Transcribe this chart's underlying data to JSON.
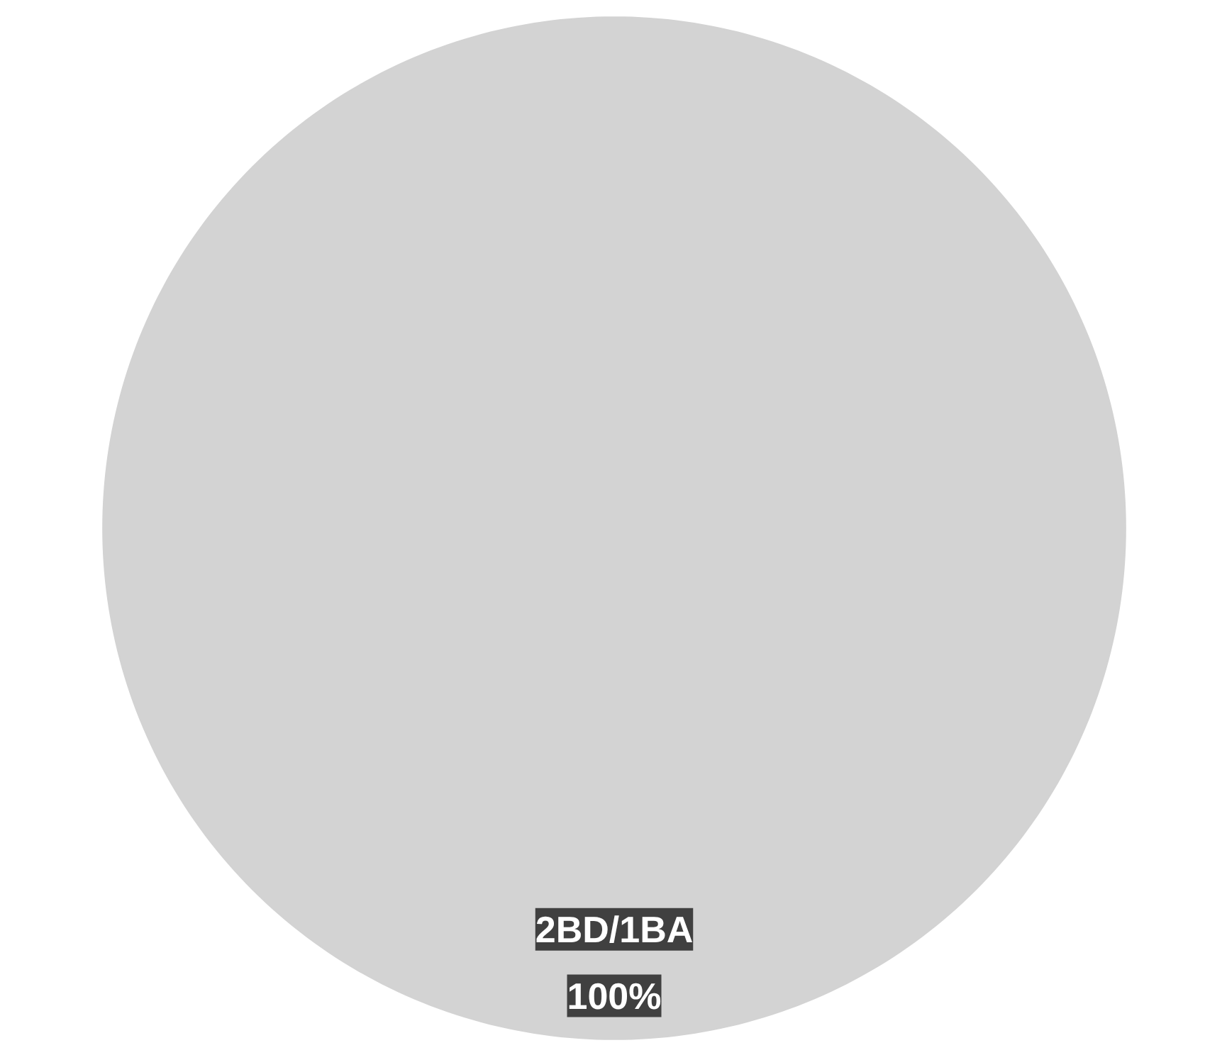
{
  "chart_data": {
    "type": "pie",
    "categories": [
      "2BD/1BA"
    ],
    "values": [
      100
    ],
    "colors": [
      "#d3d3d3"
    ],
    "value_labels": [
      "100%"
    ]
  }
}
